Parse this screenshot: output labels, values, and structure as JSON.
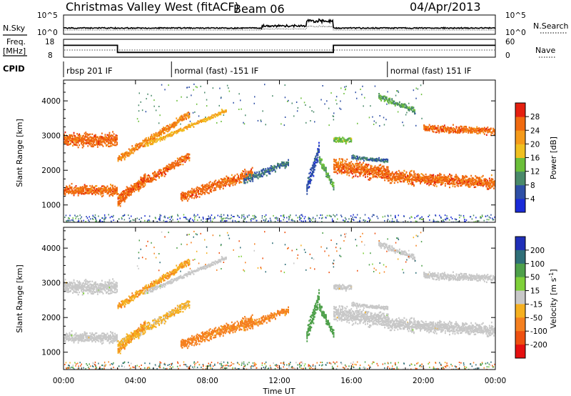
{
  "header": {
    "title": "Christmas Valley West (fitACF)",
    "beam": "Beam 06",
    "date": "04/Apr/2013"
  },
  "noise_panel": {
    "left_label": "N.Sky",
    "right_label": "N.Search",
    "left_ticks": [
      "10^5",
      "10^0"
    ],
    "right_ticks": [
      "10^5",
      "10^0"
    ]
  },
  "freq_panel": {
    "left_label_1": "Freq.",
    "left_label_2": "[MHz]",
    "right_label": "Nave",
    "left_ticks": [
      "18",
      "8"
    ],
    "right_ticks": [
      "60",
      "0"
    ]
  },
  "cpid": {
    "label": "CPID",
    "segments": [
      {
        "start_hour": 0,
        "text": "rbsp 201 IF"
      },
      {
        "start_hour": 6,
        "text": "normal (fast) -151 IF"
      },
      {
        "start_hour": 18,
        "text": "normal (fast) 151 IF"
      }
    ]
  },
  "x_axis": {
    "title": "Time UT",
    "ticks": [
      "00:00",
      "04:00",
      "08:00",
      "12:00",
      "16:00",
      "20:00",
      "00:00"
    ]
  },
  "power_colorbar": {
    "title": "Power [dB]",
    "ticks": [
      "4",
      "8",
      "12",
      "16",
      "20",
      "24",
      "28"
    ],
    "colors": [
      "#1a2bd8",
      "#2e4fa6",
      "#4a8a6a",
      "#6bbf3a",
      "#f0c020",
      "#f59a1a",
      "#f06a10",
      "#e52010"
    ]
  },
  "velocity_colorbar": {
    "title": "Velocity [m s",
    "title_sup": "-1",
    "title_end": "]",
    "ticks": [
      "200",
      "100",
      "50",
      "15",
      "-15",
      "-50",
      "-100",
      "-200"
    ],
    "colors": [
      "#1f2fb8",
      "#2f6f78",
      "#4ea04a",
      "#7fd03a",
      "#c8c8c8",
      "#f5b020",
      "#f58020",
      "#ee5010",
      "#e51010"
    ]
  },
  "chart_data": {
    "type": "heatmap",
    "subtype": "SuperDARN range-time-intensity",
    "x_unit": "hours UT",
    "xlim": [
      0,
      24
    ],
    "ylabel": "Slant Range [km]",
    "ylim": [
      500,
      4600
    ],
    "yticks": [
      "1000",
      "2000",
      "3000",
      "4000"
    ],
    "frequency_trace": [
      {
        "from_hour": 0,
        "to_hour": 3,
        "mhz": 14.8
      },
      {
        "from_hour": 3,
        "to_hour": 15,
        "mhz": 10.5
      },
      {
        "from_hour": 15,
        "to_hour": 24,
        "mhz": 14.8
      }
    ],
    "scatter_bands": [
      {
        "t0": 0.0,
        "t1": 3.0,
        "r0": 2850,
        "r1": 2850,
        "w": 450,
        "p": 26,
        "v": 0
      },
      {
        "t0": 0.0,
        "t1": 3.0,
        "r0": 1400,
        "r1": 1400,
        "w": 350,
        "p": 26,
        "v": 0
      },
      {
        "t0": 3.0,
        "t1": 7.0,
        "r0": 1200,
        "r1": 2400,
        "w": 300,
        "p": 26,
        "v": -20
      },
      {
        "t0": 3.0,
        "t1": 7.0,
        "r0": 2300,
        "r1": 3600,
        "w": 250,
        "p": 24,
        "v": -30
      },
      {
        "t0": 3.0,
        "t1": 4.5,
        "r0": 1000,
        "r1": 1800,
        "w": 250,
        "p": 26,
        "v": -30
      },
      {
        "t0": 4.5,
        "t1": 9.0,
        "r0": 2700,
        "r1": 3700,
        "w": 150,
        "p": 20,
        "v": 0
      },
      {
        "t0": 6.5,
        "t1": 10.5,
        "r0": 1200,
        "r1": 1900,
        "w": 350,
        "p": 26,
        "v": -40
      },
      {
        "t0": 10.0,
        "t1": 12.5,
        "r0": 1700,
        "r1": 2200,
        "w": 250,
        "p": 8,
        "v": -40
      },
      {
        "t0": 13.5,
        "t1": 14.2,
        "r0": 1500,
        "r1": 2600,
        "w": 500,
        "p": 6,
        "v": 60
      },
      {
        "t0": 14.2,
        "t1": 15.0,
        "r0": 2300,
        "r1": 1500,
        "w": 300,
        "p": 12,
        "v": 60
      },
      {
        "t0": 15.0,
        "t1": 18.0,
        "r0": 2100,
        "r1": 1900,
        "w": 500,
        "p": 26,
        "v": 0
      },
      {
        "t0": 18.0,
        "t1": 24.0,
        "r0": 1800,
        "r1": 1600,
        "w": 400,
        "p": 26,
        "v": 0
      },
      {
        "t0": 15.0,
        "t1": 16.0,
        "r0": 2850,
        "r1": 2850,
        "w": 200,
        "p": 14,
        "v": 0
      },
      {
        "t0": 16.0,
        "t1": 18.0,
        "r0": 2350,
        "r1": 2250,
        "w": 150,
        "p": 8,
        "v": 0
      },
      {
        "t0": 20.0,
        "t1": 24.0,
        "r0": 3200,
        "r1": 3100,
        "w": 250,
        "p": 26,
        "v": 0
      },
      {
        "t0": 17.5,
        "t1": 19.5,
        "r0": 4100,
        "r1": 3700,
        "w": 200,
        "p": 12,
        "v": 0
      }
    ]
  }
}
